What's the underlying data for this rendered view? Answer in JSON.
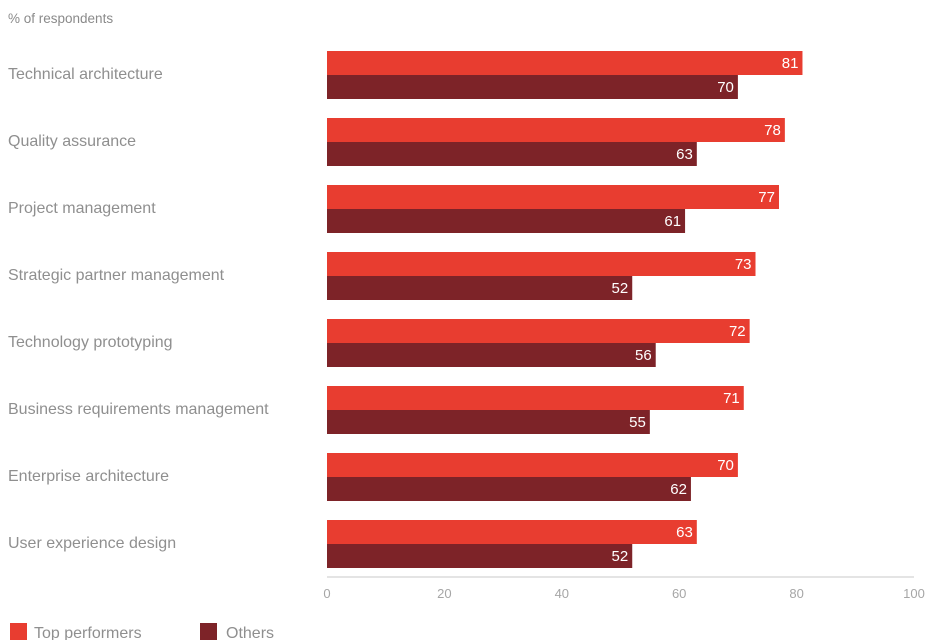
{
  "chart_data": {
    "type": "bar",
    "orientation": "horizontal",
    "subtitle": "% of respondents",
    "categories": [
      "Technical architecture",
      "Quality assurance",
      "Project management",
      "Strategic partner management",
      "Technology prototyping",
      "Business requirements management",
      "Enterprise architecture",
      "User experience design"
    ],
    "series": [
      {
        "name": "Top performers",
        "color": "#e83d30",
        "values": [
          81,
          78,
          77,
          73,
          72,
          71,
          70,
          63
        ]
      },
      {
        "name": "Others",
        "color": "#7d2328",
        "values": [
          70,
          63,
          61,
          52,
          56,
          55,
          62,
          52
        ]
      }
    ],
    "xlim": [
      0,
      100
    ],
    "xticks": [
      0,
      20,
      40,
      60,
      80,
      100
    ],
    "grid": false,
    "legend_position": "bottom-left",
    "data_labels": true
  }
}
